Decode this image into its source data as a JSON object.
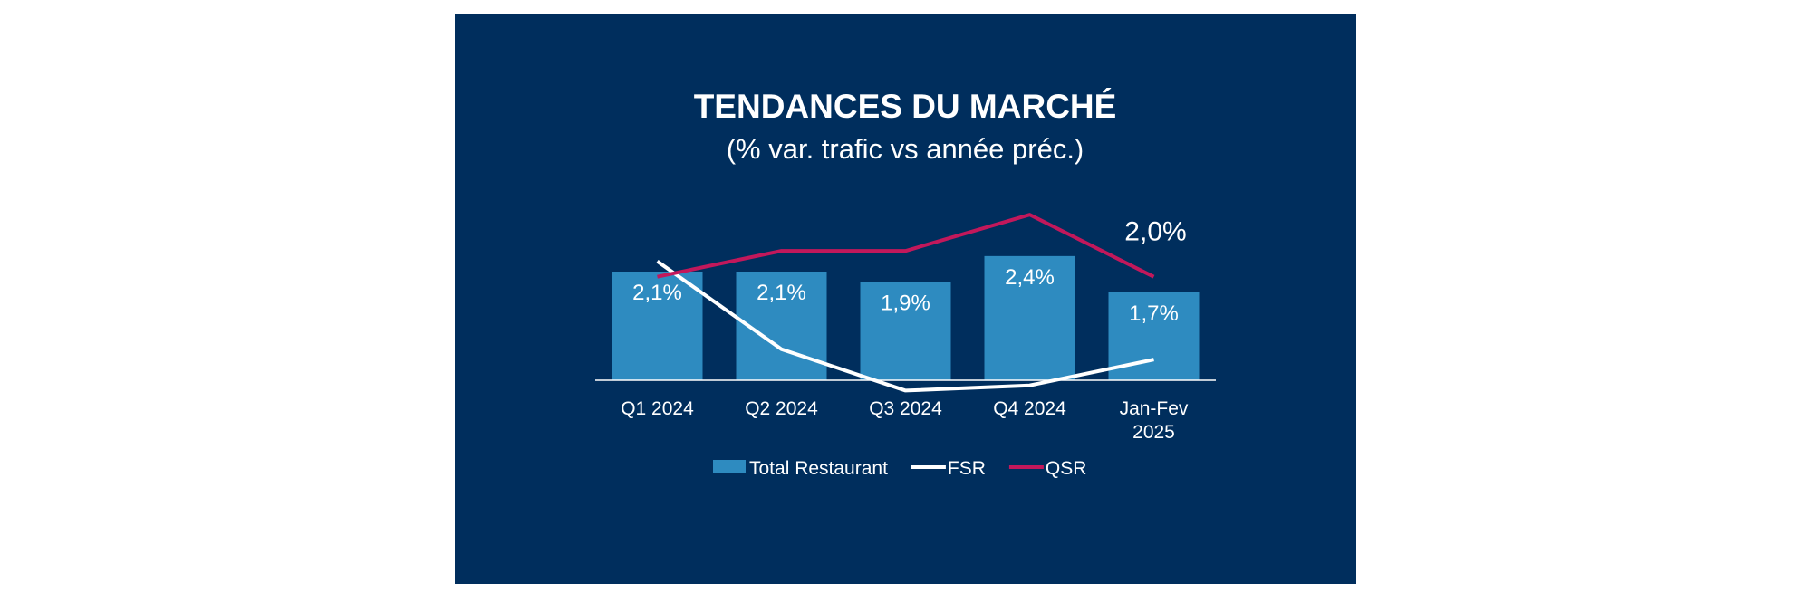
{
  "chart_data": {
    "type": "bar",
    "title": "TENDANCES DU MARCHÉ",
    "subtitle": "(% var. trafic vs année préc.)",
    "categories": [
      [
        "Q1 2024"
      ],
      [
        "Q2 2024"
      ],
      [
        "Q3 2024"
      ],
      [
        "Q4 2024"
      ],
      [
        "Jan-Fev",
        "2025"
      ]
    ],
    "series": [
      {
        "name": "Total Restaurant",
        "kind": "bar",
        "values": [
          2.1,
          2.1,
          1.9,
          2.4,
          1.7
        ],
        "labels": [
          "2,1%",
          "2,1%",
          "1,9%",
          "2,4%",
          "1,7%"
        ],
        "color": "#2e8bc0"
      },
      {
        "name": "FSR",
        "kind": "line",
        "values": [
          2.3,
          0.6,
          -0.2,
          -0.1,
          0.4
        ],
        "color": "#ffffff"
      },
      {
        "name": "QSR",
        "kind": "line",
        "values": [
          2.0,
          2.5,
          2.5,
          3.2,
          2.0
        ],
        "color": "#c2185b"
      }
    ],
    "annotation": "2,0%",
    "ylim": [
      -0.3,
      3.5
    ],
    "legend_position": "bottom",
    "grid": false
  },
  "colors": {
    "background": "#002e5d",
    "text": "#ffffff",
    "axis": "#ffffff"
  }
}
